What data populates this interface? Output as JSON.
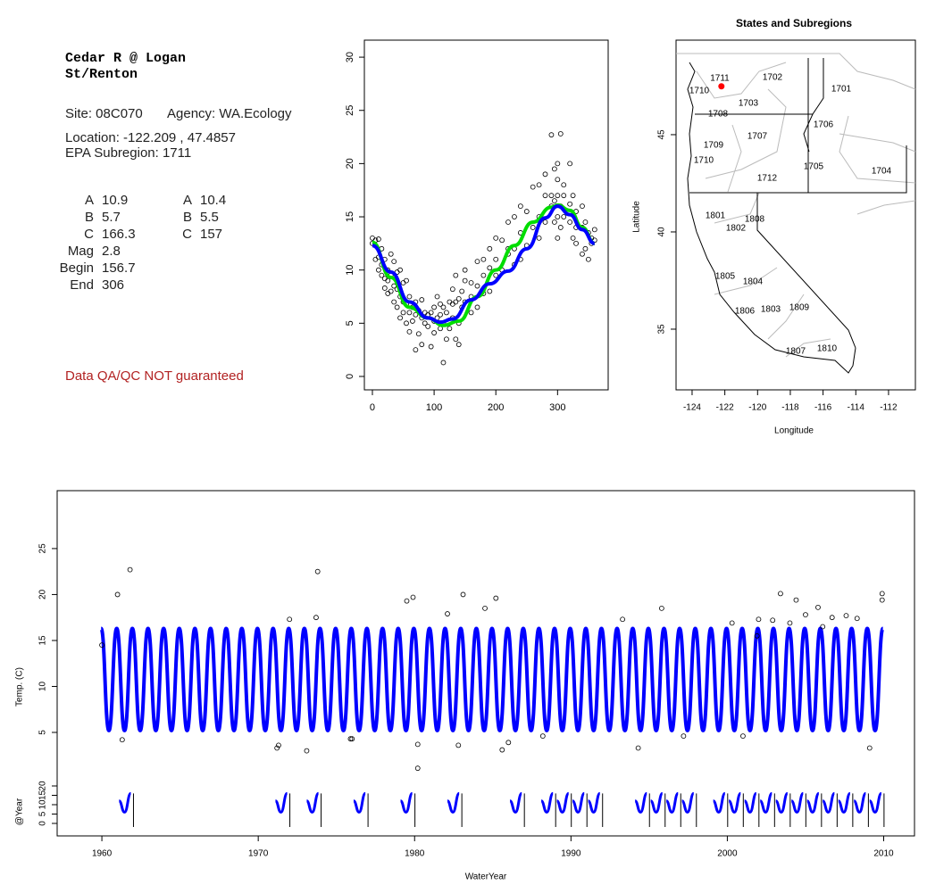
{
  "site_info": {
    "title": [
      "Cedar R @ Logan",
      "St/Renton"
    ],
    "site": "Site: 08C070",
    "agency": "Agency: WA.Ecology",
    "location": "Location: -122.209 , 47.4857",
    "subregion": "EPA Subregion: 1711",
    "params": [
      {
        "label": "A",
        "value": 10.9
      },
      {
        "label": "B",
        "value": 5.7
      },
      {
        "label": "C",
        "value": 166.3
      },
      {
        "label": "Mag",
        "value": 2.8
      },
      {
        "label": "Begin",
        "value": 156.7
      },
      {
        "label": "End",
        "value": 306
      }
    ],
    "params2": [
      {
        "label": "A",
        "value": 10.4
      },
      {
        "label": "B",
        "value": 5.5
      },
      {
        "label": "C",
        "value": 157
      }
    ],
    "notice": "Data QA/QC NOT guaranteed"
  },
  "chart_data": [
    {
      "type": "scatter",
      "xlim": [
        -13,
        382
      ],
      "ylim": [
        -1.26,
        31.6
      ],
      "xticks": [
        0,
        100,
        200,
        300
      ],
      "yticks": [
        0,
        5,
        10,
        15,
        20,
        25,
        30
      ],
      "x": [
        0,
        0,
        5,
        5,
        10,
        10,
        10,
        15,
        15,
        15,
        20,
        20,
        20,
        25,
        25,
        25,
        30,
        30,
        30,
        35,
        35,
        35,
        40,
        40,
        40,
        45,
        45,
        45,
        50,
        50,
        50,
        55,
        55,
        55,
        60,
        60,
        60,
        65,
        65,
        70,
        70,
        70,
        75,
        75,
        80,
        80,
        80,
        85,
        85,
        90,
        90,
        95,
        95,
        100,
        100,
        100,
        105,
        105,
        110,
        110,
        110,
        115,
        115,
        115,
        120,
        120,
        125,
        125,
        130,
        130,
        130,
        135,
        135,
        135,
        140,
        140,
        140,
        145,
        145,
        150,
        150,
        150,
        160,
        160,
        160,
        170,
        170,
        170,
        180,
        180,
        180,
        190,
        190,
        190,
        200,
        200,
        200,
        210,
        210,
        220,
        220,
        220,
        230,
        230,
        230,
        240,
        240,
        240,
        250,
        250,
        260,
        260,
        270,
        270,
        270,
        280,
        280,
        280,
        290,
        290,
        290,
        295,
        295,
        295,
        300,
        300,
        300,
        300,
        300,
        305,
        305,
        305,
        310,
        310,
        310,
        320,
        320,
        320,
        325,
        325,
        330,
        330,
        330,
        340,
        340,
        340,
        345,
        345,
        350,
        350,
        355,
        355,
        360,
        360
      ],
      "values": [
        12.5,
        13,
        12.8,
        11,
        11.2,
        12.9,
        10,
        10.5,
        9.5,
        12,
        9.2,
        8.3,
        11,
        10,
        9,
        7.8,
        9.5,
        8,
        11.5,
        8.5,
        7,
        10.8,
        6.5,
        8.2,
        9.8,
        7.5,
        5.5,
        10,
        6,
        8.8,
        7,
        5,
        6.8,
        9,
        6,
        4.2,
        7.5,
        5.2,
        6.5,
        2.5,
        5.8,
        7,
        6.2,
        4,
        3,
        5.5,
        7.2,
        5,
        6,
        4.7,
        5.8,
        2.8,
        6,
        4.1,
        6.5,
        5.2,
        7.5,
        5.5,
        6.8,
        4.5,
        5.8,
        1.3,
        6.5,
        5,
        6,
        3.5,
        7,
        4.5,
        8.2,
        5.5,
        6.8,
        3.5,
        9.5,
        7,
        7.3,
        5,
        3,
        8,
        6.5,
        7,
        9,
        10,
        8.8,
        6,
        7.5,
        10.8,
        8.5,
        6.5,
        9.5,
        7.8,
        11,
        10.2,
        8,
        12,
        9.5,
        11,
        13,
        12.8,
        10,
        14.5,
        11.5,
        12,
        12,
        15,
        10.5,
        16,
        13.5,
        11,
        15.5,
        12.3,
        17.8,
        14,
        18,
        15,
        13,
        17,
        14.5,
        19,
        22.7,
        16,
        17,
        19.5,
        14.5,
        16.5,
        20,
        17,
        15,
        18.5,
        13,
        22.8,
        16,
        14,
        18,
        15,
        17,
        20,
        16.2,
        14.5,
        17,
        13,
        15.5,
        14,
        12.5,
        16,
        14,
        11.5,
        14.5,
        12,
        13.5,
        11,
        13,
        12.5,
        12.8,
        13.8
      ],
      "curves": [
        {
          "color": "#00dd00",
          "x": [
            0,
            30,
            60,
            90,
            115,
            140,
            170,
            200,
            230,
            260,
            290,
            300,
            320,
            340,
            360
          ],
          "values": [
            12.6,
            9.3,
            6.5,
            5.5,
            4.8,
            5.2,
            7.5,
            10,
            12.3,
            14.5,
            15.9,
            16.1,
            15.6,
            14,
            12.5
          ]
        },
        {
          "color": "#0000ff",
          "x": [
            0,
            30,
            60,
            90,
            110,
            130,
            160,
            190,
            220,
            250,
            280,
            300,
            320,
            340,
            360
          ],
          "values": [
            12.3,
            9.8,
            7,
            5.5,
            5.1,
            5.4,
            7.2,
            8.7,
            9.9,
            12,
            14.9,
            16,
            15.2,
            13.8,
            12.5
          ]
        }
      ]
    },
    {
      "type": "map",
      "title": "States and Subregions",
      "x_label": "Longitude",
      "y_label": "Latitude",
      "xlim": [
        -124.98,
        -110.36
      ],
      "ylim": [
        31.88,
        49.86
      ],
      "xticks": [
        -124,
        -122,
        -120,
        -118,
        -116,
        -114,
        -112
      ],
      "yticks": [
        35,
        40,
        45
      ],
      "region_labels": [
        "1711",
        "1710",
        "1702",
        "1701",
        "1703",
        "1708",
        "1706",
        "1707",
        "1709",
        "1710",
        "1705",
        "1704",
        "1712",
        "1801",
        "1808",
        "1802",
        "1805",
        "1804",
        "1806",
        "1803",
        "1809",
        "1810",
        "1807"
      ],
      "point": {
        "x": [
          -122.209
        ],
        "y": [
          47.4857
        ],
        "color": "#ff0000"
      }
    },
    {
      "type": "line",
      "x_label": "WaterYear",
      "y_label": "Temp. (C)",
      "xlim": [
        1957.14,
        2011.97
      ],
      "ylim": [
        -6.26,
        31.3
      ],
      "xticks": [
        1960,
        1970,
        1980,
        1990,
        2000,
        2010
      ],
      "yticks": [
        5,
        10,
        15,
        20,
        25
      ],
      "color": "#0000ff",
      "x": [
        1959.95,
        1960.45,
        1960.95,
        1961.45,
        1961.95,
        1962.45,
        1962.95,
        1963.45,
        1963.95,
        1964.45,
        1964.95,
        1965.45,
        1965.95,
        1966.45,
        1966.95,
        1967.45,
        1967.95,
        1968.45,
        1968.95,
        1969.45,
        1969.95,
        1970.45,
        1970.95,
        1971.45,
        1971.95,
        1972.45,
        1972.95,
        1973.45,
        1973.95,
        1974.45,
        1974.95,
        1975.45,
        1975.95,
        1976.45,
        1976.95,
        1977.45,
        1977.95,
        1978.45,
        1978.95,
        1979.45,
        1979.95,
        1980.45,
        1980.95,
        1981.45,
        1981.95,
        1982.45,
        1982.95,
        1983.45,
        1983.95,
        1984.45,
        1984.95,
        1985.45,
        1985.95,
        1986.45,
        1986.95,
        1987.45,
        1987.95,
        1988.45,
        1988.95,
        1989.45,
        1989.95,
        1990.45,
        1990.95,
        1991.45,
        1991.95,
        1992.45,
        1992.95,
        1993.45,
        1993.95,
        1994.45,
        1994.95,
        1995.45,
        1995.95,
        1996.45,
        1996.95,
        1997.45,
        1997.95,
        1998.45,
        1998.95,
        1999.45,
        1999.95,
        2000.45,
        2000.95,
        2001.45,
        2001.95,
        2002.45,
        2002.95,
        2003.45,
        2003.95,
        2004.45,
        2004.95,
        2005.45,
        2005.95,
        2006.45,
        2006.95,
        2007.45,
        2007.95,
        2008.45,
        2008.95,
        2009.45,
        2009.95
      ],
      "values": [
        16.3,
        5.2,
        16.3,
        5.2,
        16.3,
        5.2,
        16.3,
        5.2,
        16.3,
        5.2,
        16.3,
        5.2,
        16.3,
        5.2,
        16.3,
        5.2,
        16.3,
        5.2,
        16.3,
        5.2,
        16.3,
        5.2,
        16.3,
        5.2,
        16.3,
        5.2,
        16.3,
        5.2,
        16.3,
        5.2,
        16.3,
        5.2,
        16.3,
        5.2,
        16.3,
        5.2,
        16.3,
        5.2,
        16.3,
        5.2,
        16.3,
        5.2,
        16.3,
        5.2,
        16.3,
        5.2,
        16.3,
        5.2,
        16.3,
        5.2,
        16.3,
        5.2,
        16.3,
        5.2,
        16.3,
        5.2,
        16.3,
        5.2,
        16.3,
        5.2,
        16.3,
        5.2,
        16.3,
        5.2,
        16.3,
        5.2,
        16.3,
        5.2,
        16.3,
        5.2,
        16.3,
        5.2,
        16.3,
        5.2,
        16.3,
        5.2,
        16.3,
        5.2,
        16.3,
        5.2,
        16.3,
        5.2,
        16.3,
        5.2,
        16.3,
        5.2,
        16.3,
        5.2,
        16.3,
        5.2,
        16.3,
        5.2,
        16.3,
        5.2,
        16.3,
        5.2,
        16.3,
        5.2,
        16.3,
        5.2,
        16.3
      ],
      "points_x": [
        1960.0,
        1961.0,
        1961.3,
        1961.8,
        1971.2,
        1971.3,
        1972.0,
        1973.1,
        1973.8,
        1973.7,
        1975.9,
        1976.0,
        1979.5,
        1979.9,
        1980.2,
        1980.2,
        1982.1,
        1982.8,
        1983.1,
        1984.5,
        1985.2,
        1985.6,
        1986.0,
        1988.2,
        1993.3,
        1994.3,
        1995.8,
        1997.2,
        2001.0,
        2003.4,
        2004.4,
        2005.8,
        2006.7,
        2008.3,
        2009.1,
        2009.9,
        2009.9,
        2002.0,
        2002.9,
        2007.6,
        2000.3,
        2001.9,
        2004.0,
        2005.0,
        2006.1
      ],
      "points_y": [
        14.5,
        20,
        4.2,
        22.7,
        3.3,
        3.6,
        17.3,
        3.0,
        22.5,
        17.5,
        4.3,
        4.3,
        19.3,
        19.7,
        3.7,
        1.1,
        17.9,
        3.6,
        20,
        18.5,
        19.6,
        3.1,
        3.9,
        4.6,
        17.3,
        3.3,
        18.5,
        4.6,
        4.6,
        20.1,
        19.4,
        18.6,
        17.5,
        17.4,
        3.3,
        20.1,
        19.4,
        17.3,
        17.2,
        17.7,
        16.9,
        15.5,
        16.9,
        17.8,
        16.5
      ]
    },
    {
      "type": "line",
      "y_label": "@Year",
      "xlim": [
        1957.14,
        2011.97
      ],
      "ylim": [
        -6.67,
        20
      ],
      "yticks": [
        0,
        5,
        10,
        15,
        20
      ],
      "color": "#0000ff",
      "x": [
        1961.1,
        1961.45,
        1961.85,
        null,
        1971.1,
        1971.45,
        1971.85,
        null,
        1973.1,
        1973.45,
        1973.85,
        null,
        1976.1,
        1976.45,
        1976.85,
        null,
        1979.1,
        1979.45,
        1979.85,
        null,
        1982.1,
        1982.45,
        1982.85,
        null,
        1986.1,
        1986.45,
        1986.85,
        null,
        1988.1,
        1988.45,
        1988.85,
        null,
        1989.1,
        1989.45,
        1989.85,
        null,
        1990.1,
        1990.45,
        1990.85,
        null,
        1991.1,
        1991.45,
        1991.85,
        null,
        1994.1,
        1994.45,
        1994.85,
        null,
        1995.1,
        1995.45,
        1995.85,
        null,
        1996.1,
        1996.45,
        1996.85,
        null,
        1997.1,
        1997.45,
        1997.85,
        null,
        1999.1,
        1999.45,
        1999.85,
        null,
        2000.1,
        2000.45,
        2000.85,
        null,
        2001.1,
        2001.45,
        2001.85,
        null,
        2002.1,
        2002.45,
        2002.85,
        null,
        2003.1,
        2003.45,
        2003.85,
        null,
        2004.1,
        2004.45,
        2004.85,
        null,
        2005.1,
        2005.45,
        2005.85,
        null,
        2006.1,
        2006.45,
        2006.85,
        null,
        2007.1,
        2007.45,
        2007.85,
        null,
        2008.1,
        2008.45,
        2008.85,
        null,
        2009.1,
        2009.45,
        2009.85
      ],
      "values": [
        12,
        6,
        16,
        null,
        12,
        6,
        16,
        null,
        12,
        6,
        16,
        null,
        12,
        6,
        16,
        null,
        12,
        6,
        16,
        null,
        12,
        6,
        16,
        null,
        12,
        6,
        16,
        null,
        12,
        6,
        16,
        null,
        12,
        6,
        16,
        null,
        12,
        6,
        16,
        null,
        12,
        6,
        16,
        null,
        12,
        6,
        16,
        null,
        12,
        6,
        16,
        null,
        12,
        6,
        16,
        null,
        12,
        6,
        16,
        null,
        12,
        6,
        16,
        null,
        12,
        6,
        16,
        null,
        12,
        6,
        16,
        null,
        12,
        6,
        16,
        null,
        12,
        6,
        16,
        null,
        12,
        6,
        16,
        null,
        12,
        6,
        16,
        null,
        12,
        6,
        16,
        null,
        12,
        6,
        16,
        null,
        12,
        6,
        16,
        null,
        12,
        6,
        16
      ]
    }
  ]
}
